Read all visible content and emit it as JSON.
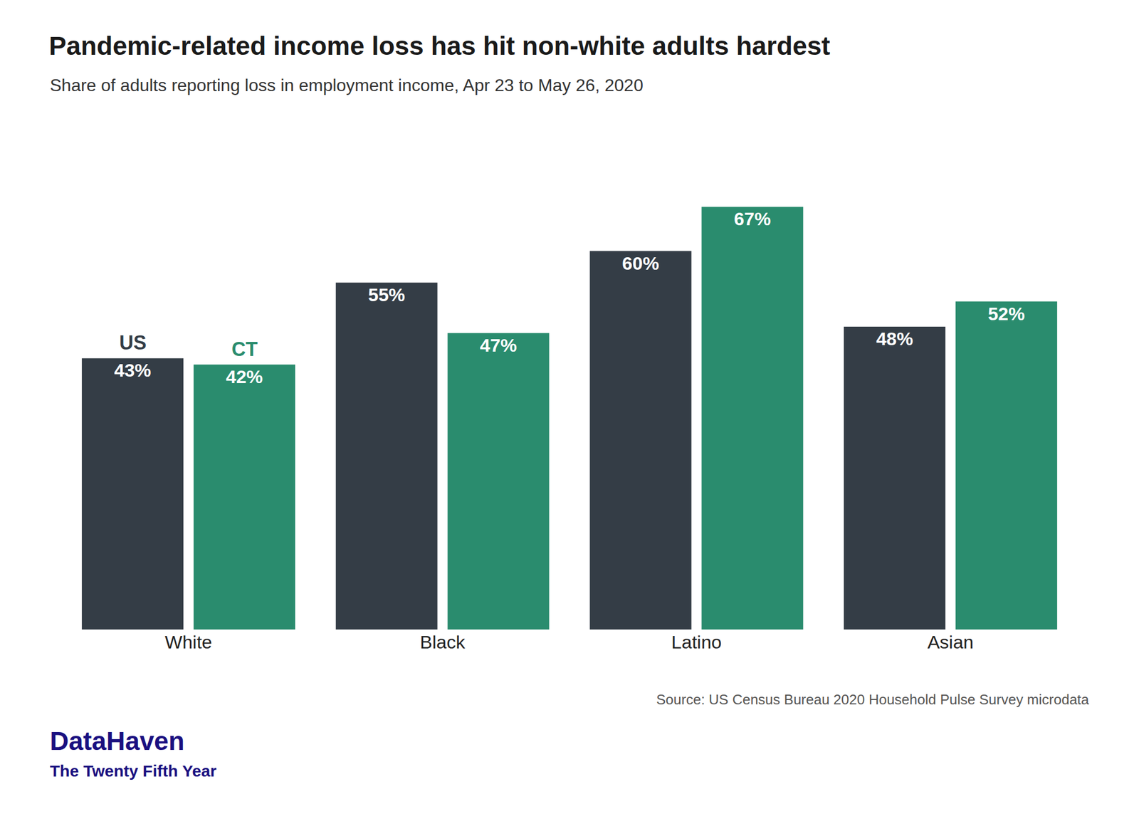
{
  "chart_data": {
    "type": "bar",
    "title": "Pandemic-related income loss has hit non-white adults hardest",
    "subtitle": "Share of adults reporting loss in employment income, Apr 23 to May 26, 2020",
    "annotations": [
      "Source: US Census Bureau 2020 Household Pulse Survey microdata",
      "DataHaven",
      "The Twenty Fifth Year"
    ],
    "categories": [
      "White",
      "Black",
      "Latino",
      "Asian"
    ],
    "series": [
      {
        "name": "US",
        "color": "#343d46",
        "values": [
          0.43,
          0.55,
          0.6,
          0.48
        ],
        "value_labels": [
          "43%",
          "55%",
          "60%",
          "48%"
        ]
      },
      {
        "name": "CT",
        "color": "#2a8c6e",
        "values": [
          0.42,
          0.47,
          0.67,
          0.52
        ],
        "value_labels": [
          "42%",
          "47%",
          "67%",
          "52%"
        ]
      }
    ],
    "ylim": [
      0.0,
      0.8
    ],
    "grid": false,
    "data_labels": true,
    "tick_labels": "x"
  }
}
